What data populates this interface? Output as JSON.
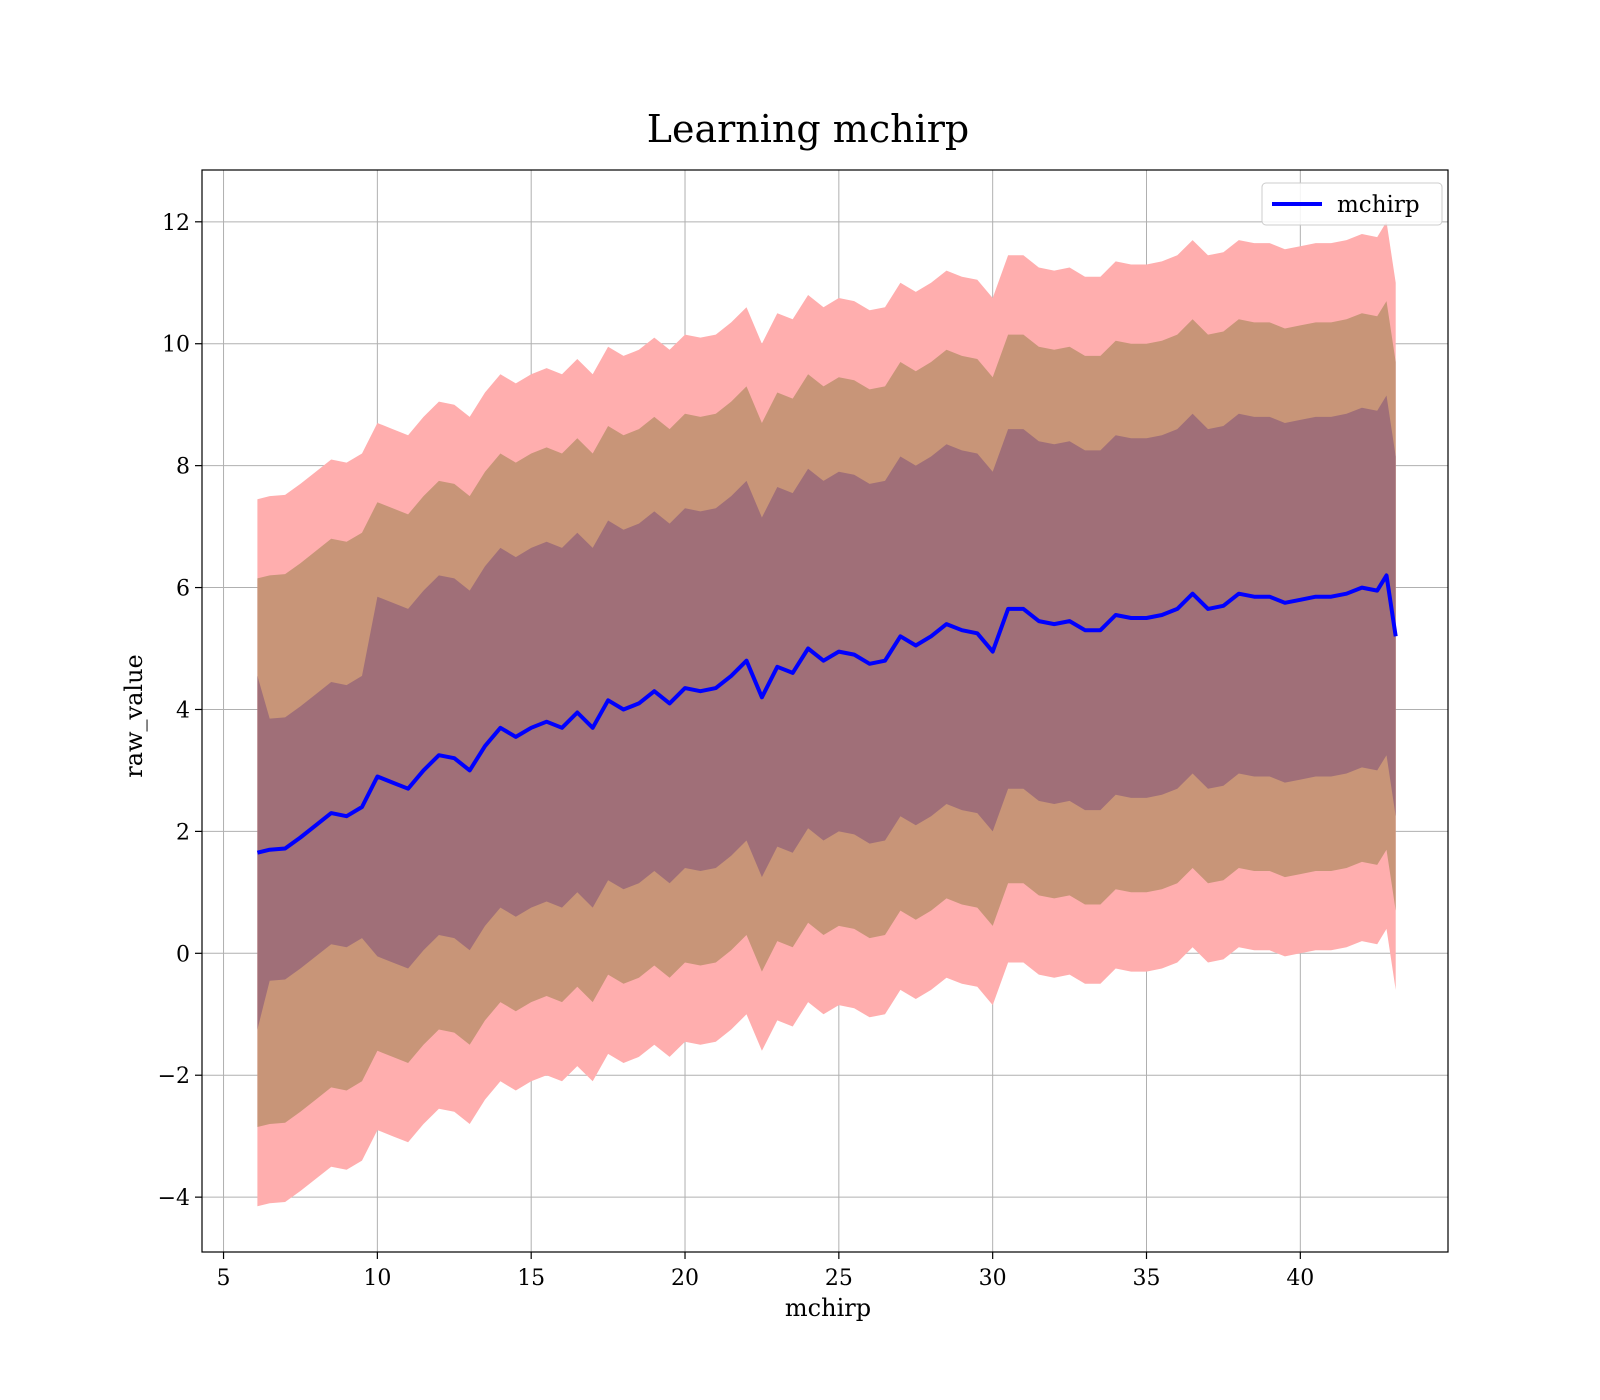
{
  "chart_data": {
    "type": "line",
    "title": "Learning mchirp",
    "xlabel": "mchirp",
    "ylabel": "raw_value",
    "xlim": [
      4.3,
      44.8
    ],
    "ylim": [
      -4.9,
      12.85
    ],
    "xticks": [
      5,
      10,
      15,
      20,
      25,
      30,
      35,
      40
    ],
    "yticks": [
      -4,
      -2,
      0,
      2,
      4,
      6,
      8,
      10,
      12
    ],
    "ytick_labels": [
      "−4",
      "−2",
      "0",
      "2",
      "4",
      "6",
      "8",
      "10",
      "12"
    ],
    "grid": true,
    "legend": {
      "position": "top-right",
      "entries": [
        "mchirp"
      ]
    },
    "colors": {
      "line": "#0000ff",
      "band_1sigma": "#a06f78",
      "band_2sigma": "#c89578",
      "band_3sigma": "#ffaeae"
    },
    "x": [
      6.1,
      6.5,
      7.0,
      7.5,
      8.0,
      8.5,
      9.0,
      9.5,
      10.0,
      10.5,
      11.0,
      11.5,
      12.0,
      12.5,
      13.0,
      13.5,
      14.0,
      14.5,
      15.0,
      15.5,
      16.0,
      16.5,
      17.0,
      17.5,
      18.0,
      18.5,
      19.0,
      19.5,
      20.0,
      20.5,
      21.0,
      21.5,
      22.0,
      22.5,
      23.0,
      23.5,
      24.0,
      24.5,
      25.0,
      25.5,
      26.0,
      26.5,
      27.0,
      27.5,
      28.0,
      28.5,
      29.0,
      29.5,
      30.0,
      30.5,
      31.0,
      31.5,
      32.0,
      32.5,
      33.0,
      33.5,
      34.0,
      34.5,
      35.0,
      35.5,
      36.0,
      36.5,
      37.0,
      37.5,
      38.0,
      38.5,
      39.0,
      39.5,
      40.0,
      40.5,
      41.0,
      41.5,
      42.0,
      42.5,
      42.8,
      43.1
    ],
    "series": [
      {
        "name": "mchirp",
        "values": [
          1.65,
          1.7,
          1.72,
          1.9,
          2.1,
          2.3,
          2.25,
          2.4,
          2.9,
          2.8,
          2.7,
          3.0,
          3.25,
          3.2,
          3.0,
          3.4,
          3.7,
          3.55,
          3.7,
          3.8,
          3.7,
          3.95,
          3.7,
          4.15,
          4.0,
          4.1,
          4.3,
          4.1,
          4.35,
          4.3,
          4.35,
          4.55,
          4.8,
          4.2,
          4.7,
          4.6,
          5.0,
          4.8,
          4.95,
          4.9,
          4.75,
          4.8,
          5.2,
          5.05,
          5.2,
          5.4,
          5.3,
          5.25,
          4.95,
          5.65,
          5.65,
          5.45,
          5.4,
          5.45,
          5.3,
          5.3,
          5.55,
          5.5,
          5.5,
          5.55,
          5.65,
          5.9,
          5.65,
          5.7,
          5.9,
          5.85,
          5.85,
          5.75,
          5.8,
          5.85,
          5.85,
          5.9,
          6.0,
          5.95,
          6.2,
          5.2
        ]
      }
    ],
    "band_halfwidths_sigma": [
      2.9,
      2.15,
      2.15,
      2.15,
      2.15,
      2.15,
      2.15,
      2.15,
      2.95,
      2.95,
      2.95,
      2.95,
      2.95,
      2.95,
      2.95,
      2.95,
      2.95,
      2.95,
      2.95,
      2.95,
      2.95,
      2.95,
      2.95,
      2.95,
      2.95,
      2.95,
      2.95,
      2.95,
      2.95,
      2.95,
      2.95,
      2.95,
      2.95,
      2.95,
      2.95,
      2.95,
      2.95,
      2.95,
      2.95,
      2.95,
      2.95,
      2.95,
      2.95,
      2.95,
      2.95,
      2.95,
      2.95,
      2.95,
      2.95,
      2.95,
      2.95,
      2.95,
      2.95,
      2.95,
      2.95,
      2.95,
      2.95,
      2.95,
      2.95,
      2.95,
      2.95,
      2.95,
      2.95,
      2.95,
      2.95,
      2.95,
      2.95,
      2.95,
      2.95,
      2.95,
      2.95,
      2.95,
      2.95,
      2.95,
      2.95,
      2.95
    ],
    "band_halfwidths_2sigma": [
      4.5,
      4.5,
      4.5,
      4.5,
      4.5,
      4.5,
      4.5,
      4.5,
      4.5,
      4.5,
      4.5,
      4.5,
      4.5,
      4.5,
      4.5,
      4.5,
      4.5,
      4.5,
      4.5,
      4.5,
      4.5,
      4.5,
      4.5,
      4.5,
      4.5,
      4.5,
      4.5,
      4.5,
      4.5,
      4.5,
      4.5,
      4.5,
      4.5,
      4.5,
      4.5,
      4.5,
      4.5,
      4.5,
      4.5,
      4.5,
      4.5,
      4.5,
      4.5,
      4.5,
      4.5,
      4.5,
      4.5,
      4.5,
      4.5,
      4.5,
      4.5,
      4.5,
      4.5,
      4.5,
      4.5,
      4.5,
      4.5,
      4.5,
      4.5,
      4.5,
      4.5,
      4.5,
      4.5,
      4.5,
      4.5,
      4.5,
      4.5,
      4.5,
      4.5,
      4.5,
      4.5,
      4.5,
      4.5,
      4.5,
      4.5,
      4.5
    ],
    "band_halfwidths_3sigma": [
      5.8,
      5.8,
      5.8,
      5.8,
      5.8,
      5.8,
      5.8,
      5.8,
      5.8,
      5.8,
      5.8,
      5.8,
      5.8,
      5.8,
      5.8,
      5.8,
      5.8,
      5.8,
      5.8,
      5.8,
      5.8,
      5.8,
      5.8,
      5.8,
      5.8,
      5.8,
      5.8,
      5.8,
      5.8,
      5.8,
      5.8,
      5.8,
      5.8,
      5.8,
      5.8,
      5.8,
      5.8,
      5.8,
      5.8,
      5.8,
      5.8,
      5.8,
      5.8,
      5.8,
      5.8,
      5.8,
      5.8,
      5.8,
      5.8,
      5.8,
      5.8,
      5.8,
      5.8,
      5.8,
      5.8,
      5.8,
      5.8,
      5.8,
      5.8,
      5.8,
      5.8,
      5.8,
      5.8,
      5.8,
      5.8,
      5.8,
      5.8,
      5.8,
      5.8,
      5.8,
      5.8,
      5.8,
      5.8,
      5.8,
      5.8,
      5.8
    ]
  }
}
